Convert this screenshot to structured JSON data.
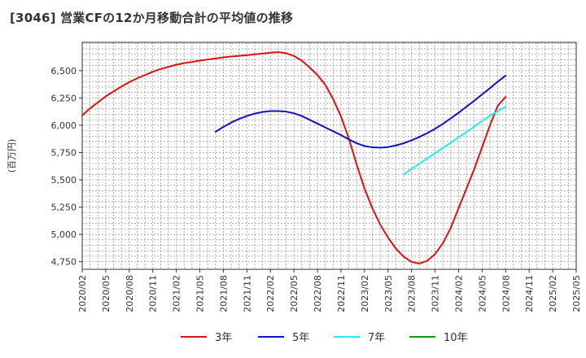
{
  "chart_data": {
    "type": "line",
    "title": "[3046]  営業CFの12か月移動合計の平均値の推移",
    "ylabel": "(百万円)",
    "xlabel": "",
    "ylim": [
      4680,
      6760
    ],
    "yticks": [
      {
        "value": 4750,
        "label": "4,750"
      },
      {
        "value": 5000,
        "label": "5,000"
      },
      {
        "value": 5250,
        "label": "5,250"
      },
      {
        "value": 5500,
        "label": "5,500"
      },
      {
        "value": 5750,
        "label": "5,750"
      },
      {
        "value": 6000,
        "label": "6,000"
      },
      {
        "value": 6250,
        "label": "6,250"
      },
      {
        "value": 6500,
        "label": "6,500"
      }
    ],
    "xticks": [
      "2020/02",
      "2020/05",
      "2020/08",
      "2020/11",
      "2021/02",
      "2021/05",
      "2021/08",
      "2021/11",
      "2022/02",
      "2022/05",
      "2022/08",
      "2022/11",
      "2023/02",
      "2023/05",
      "2023/08",
      "2023/11",
      "2024/02",
      "2024/05",
      "2024/08",
      "2024/11",
      "2025/02",
      "2025/05"
    ],
    "grid": true,
    "legend_position": "bottom",
    "series": [
      {
        "name": "3年",
        "color": "#dd1111",
        "points": [
          [
            "2020/02",
            6090
          ],
          [
            "2020/03",
            6155
          ],
          [
            "2020/04",
            6210
          ],
          [
            "2020/05",
            6265
          ],
          [
            "2020/06",
            6310
          ],
          [
            "2020/07",
            6355
          ],
          [
            "2020/08",
            6395
          ],
          [
            "2020/09",
            6430
          ],
          [
            "2020/10",
            6460
          ],
          [
            "2020/11",
            6490
          ],
          [
            "2020/12",
            6515
          ],
          [
            "2021/01",
            6535
          ],
          [
            "2021/02",
            6555
          ],
          [
            "2021/03",
            6570
          ],
          [
            "2021/04",
            6580
          ],
          [
            "2021/05",
            6592
          ],
          [
            "2021/06",
            6603
          ],
          [
            "2021/07",
            6612
          ],
          [
            "2021/08",
            6622
          ],
          [
            "2021/09",
            6630
          ],
          [
            "2021/10",
            6636
          ],
          [
            "2021/11",
            6642
          ],
          [
            "2021/12",
            6650
          ],
          [
            "2022/01",
            6657
          ],
          [
            "2022/02",
            6665
          ],
          [
            "2022/03",
            6670
          ],
          [
            "2022/04",
            6660
          ],
          [
            "2022/05",
            6635
          ],
          [
            "2022/06",
            6592
          ],
          [
            "2022/07",
            6530
          ],
          [
            "2022/08",
            6460
          ],
          [
            "2022/09",
            6370
          ],
          [
            "2022/10",
            6240
          ],
          [
            "2022/11",
            6080
          ],
          [
            "2022/12",
            5880
          ],
          [
            "2023/01",
            5640
          ],
          [
            "2023/02",
            5420
          ],
          [
            "2023/03",
            5240
          ],
          [
            "2023/04",
            5090
          ],
          [
            "2023/05",
            4970
          ],
          [
            "2023/06",
            4870
          ],
          [
            "2023/07",
            4795
          ],
          [
            "2023/08",
            4748
          ],
          [
            "2023/09",
            4733
          ],
          [
            "2023/10",
            4758
          ],
          [
            "2023/11",
            4820
          ],
          [
            "2023/12",
            4920
          ],
          [
            "2024/01",
            5060
          ],
          [
            "2024/02",
            5240
          ],
          [
            "2024/03",
            5420
          ],
          [
            "2024/04",
            5600
          ],
          [
            "2024/05",
            5800
          ],
          [
            "2024/06",
            6000
          ],
          [
            "2024/07",
            6180
          ],
          [
            "2024/08",
            6260
          ]
        ]
      },
      {
        "name": "5年",
        "color": "#1010cc",
        "points": [
          [
            "2021/07",
            5940
          ],
          [
            "2021/08",
            5985
          ],
          [
            "2021/09",
            6025
          ],
          [
            "2021/10",
            6058
          ],
          [
            "2021/11",
            6085
          ],
          [
            "2021/12",
            6107
          ],
          [
            "2022/01",
            6122
          ],
          [
            "2022/02",
            6130
          ],
          [
            "2022/03",
            6130
          ],
          [
            "2022/04",
            6125
          ],
          [
            "2022/05",
            6110
          ],
          [
            "2022/06",
            6085
          ],
          [
            "2022/07",
            6050
          ],
          [
            "2022/08",
            6015
          ],
          [
            "2022/09",
            5980
          ],
          [
            "2022/10",
            5945
          ],
          [
            "2022/11",
            5910
          ],
          [
            "2022/12",
            5870
          ],
          [
            "2023/01",
            5835
          ],
          [
            "2023/02",
            5810
          ],
          [
            "2023/03",
            5798
          ],
          [
            "2023/04",
            5795
          ],
          [
            "2023/05",
            5800
          ],
          [
            "2023/06",
            5815
          ],
          [
            "2023/07",
            5835
          ],
          [
            "2023/08",
            5862
          ],
          [
            "2023/09",
            5893
          ],
          [
            "2023/10",
            5928
          ],
          [
            "2023/11",
            5968
          ],
          [
            "2023/12",
            6013
          ],
          [
            "2024/01",
            6063
          ],
          [
            "2024/02",
            6115
          ],
          [
            "2024/03",
            6170
          ],
          [
            "2024/04",
            6225
          ],
          [
            "2024/05",
            6283
          ],
          [
            "2024/06",
            6340
          ],
          [
            "2024/07",
            6400
          ],
          [
            "2024/08",
            6455
          ]
        ]
      },
      {
        "name": "7年",
        "color": "#22eeee",
        "points": [
          [
            "2023/07",
            5550
          ],
          [
            "2023/08",
            5600
          ],
          [
            "2023/09",
            5648
          ],
          [
            "2023/10",
            5696
          ],
          [
            "2023/11",
            5744
          ],
          [
            "2023/12",
            5792
          ],
          [
            "2024/01",
            5840
          ],
          [
            "2024/02",
            5890
          ],
          [
            "2024/03",
            5938
          ],
          [
            "2024/04",
            5988
          ],
          [
            "2024/05",
            6038
          ],
          [
            "2024/06",
            6088
          ],
          [
            "2024/07",
            6130
          ],
          [
            "2024/08",
            6170
          ]
        ]
      },
      {
        "name": "10年",
        "color": "#119911",
        "points": []
      }
    ]
  }
}
